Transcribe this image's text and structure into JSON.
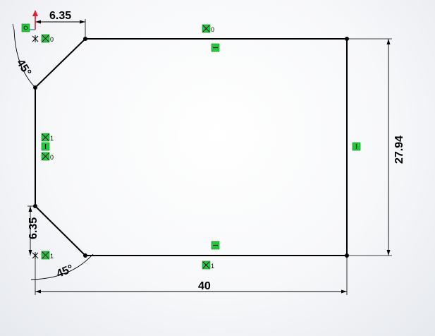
{
  "sketch": {
    "dimensions": {
      "top_offset": "6.35",
      "top_angle": "45°",
      "left_offset": "6.35",
      "bottom_angle": "45°",
      "width": "40",
      "height": "27.94"
    },
    "relations": {
      "top_edge_tag": "0",
      "top_left_tag": "0",
      "left_upper_tag": "1",
      "left_lower_tag": "0",
      "bottom_left_tag": "1",
      "bottom_edge_tag": "1"
    },
    "colors": {
      "sketch_line": "#000000",
      "relation_fill": "#22c93a",
      "origin_arrow": "#e0202a",
      "background": "#f7f8fa"
    }
  }
}
